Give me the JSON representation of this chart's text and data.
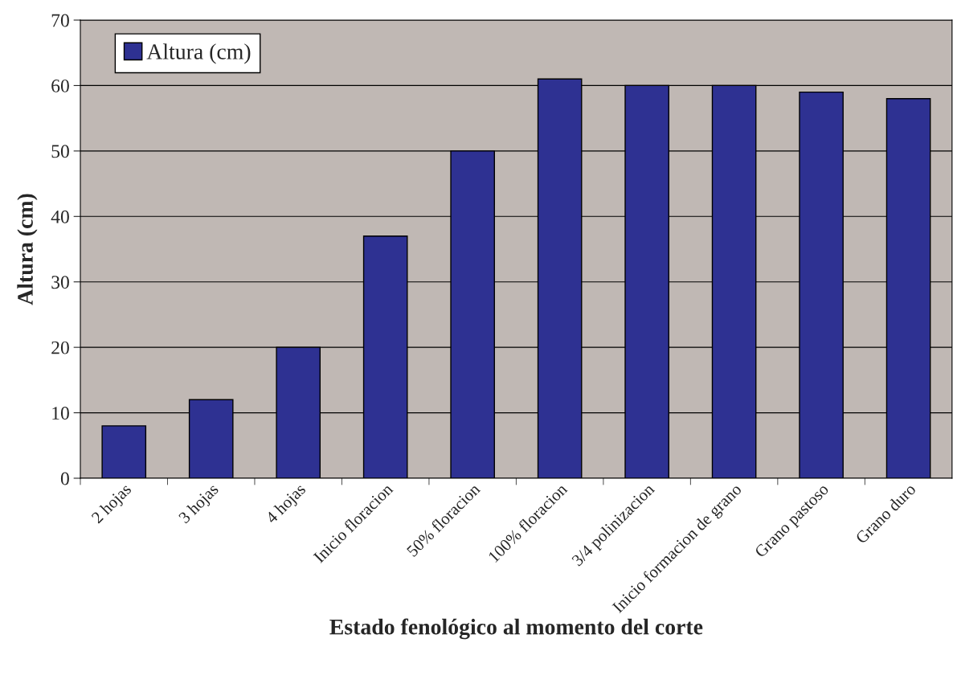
{
  "chart_data": {
    "type": "bar",
    "xlabel": "Estado fenológico al momento del corte",
    "ylabel": "Altura (cm)",
    "categories": [
      "2 hojas",
      "3 hojas",
      "4 hojas",
      "Inicio floracion",
      "50% floracion",
      "100% floracion",
      "3/4 polinizacion",
      "Inicio formacion de grano",
      "Grano pastoso",
      "Grano duro"
    ],
    "series": [
      {
        "name": "Altura (cm)",
        "color": "#2e3192",
        "values": [
          8,
          12,
          20,
          37,
          50,
          61,
          60,
          60,
          59,
          58
        ]
      }
    ],
    "ylim": [
      0,
      70
    ],
    "yticks": [
      0,
      10,
      20,
      30,
      40,
      50,
      60,
      70
    ],
    "grid": "y",
    "legend": "top left"
  }
}
